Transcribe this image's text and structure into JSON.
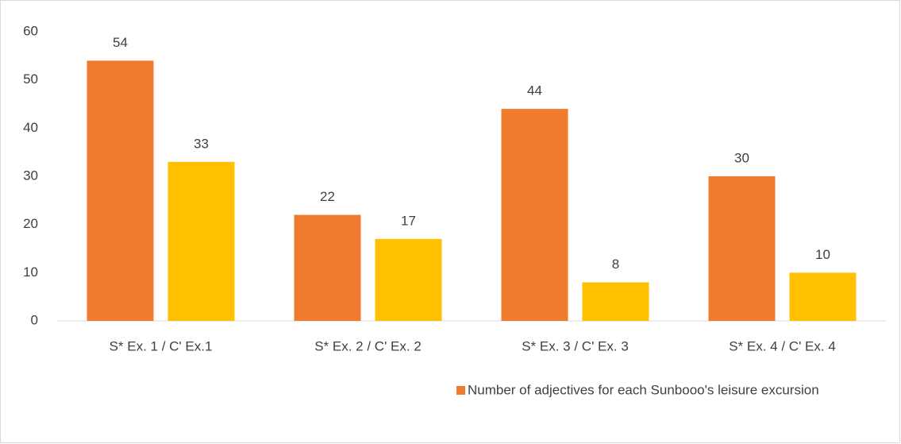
{
  "chart_data": {
    "type": "bar",
    "categories": [
      "S* Ex. 1  /  C' Ex.1",
      "S* Ex. 2  /  C' Ex. 2",
      "S* Ex. 3  /  C' Ex. 3",
      "S* Ex. 4  /  C' Ex. 4"
    ],
    "series": [
      {
        "name": "Number of adjectives for each Sunbooo's leisure excursion",
        "color": "#f07b2e",
        "values": [
          54,
          22,
          44,
          30
        ]
      },
      {
        "color": "#ffc000",
        "values": [
          33,
          17,
          8,
          10
        ]
      }
    ],
    "ylim": [
      0,
      60
    ],
    "yticks": [
      0,
      10,
      20,
      30,
      40,
      50,
      60
    ],
    "grid": false,
    "legend": "bottom"
  }
}
